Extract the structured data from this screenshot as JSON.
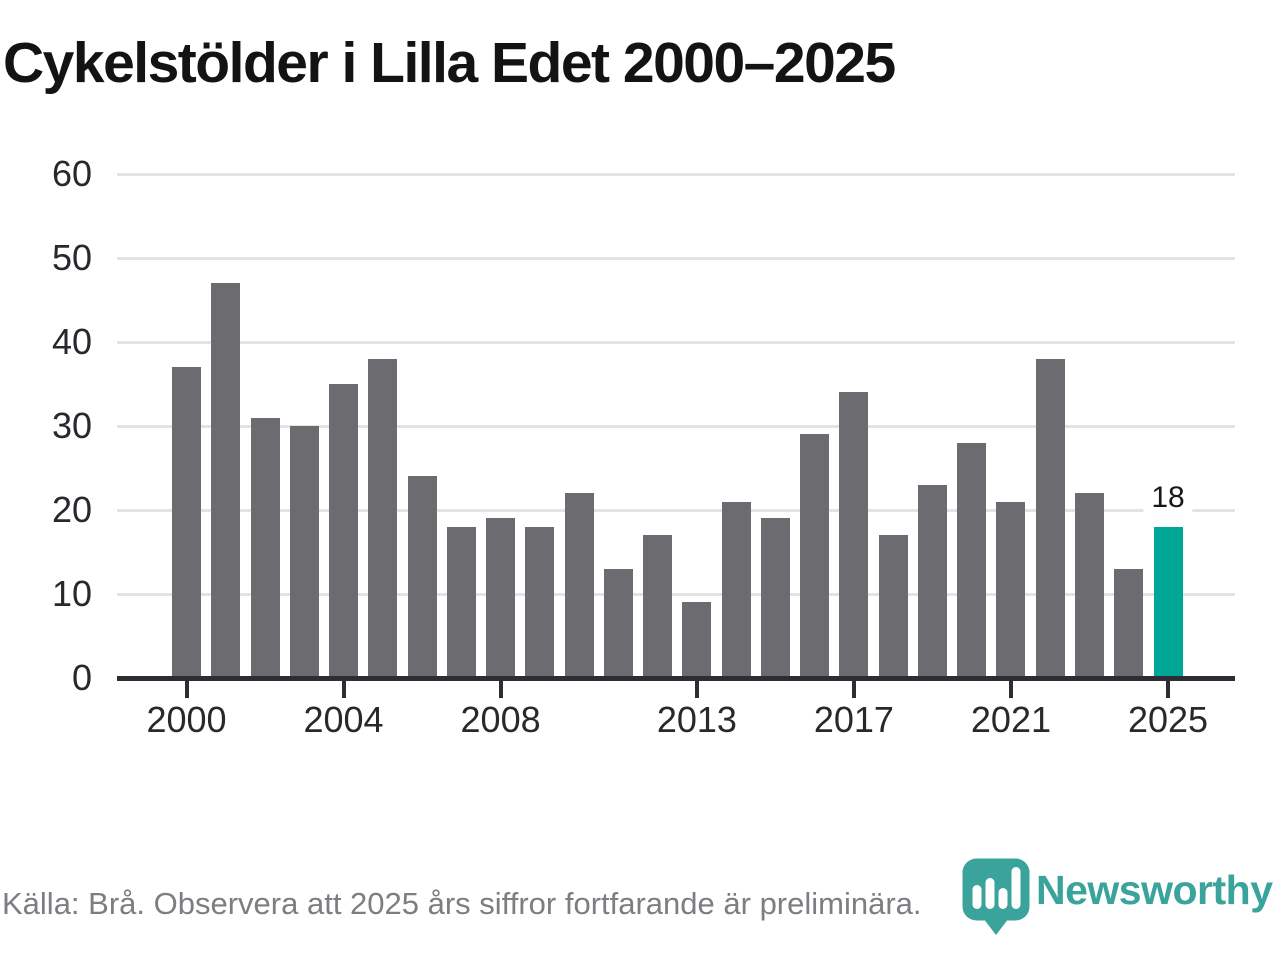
{
  "chart_data": {
    "type": "bar",
    "title": "Cykelstölder i Lilla Edet 2000–2025",
    "categories": [
      "2000",
      "2001",
      "2002",
      "2003",
      "2004",
      "2005",
      "2006",
      "2007",
      "2008",
      "2009",
      "2010",
      "2011",
      "2012",
      "2013",
      "2014",
      "2015",
      "2016",
      "2017",
      "2018",
      "2019",
      "2020",
      "2021",
      "2022",
      "2023",
      "2024",
      "2025"
    ],
    "values": [
      37,
      47,
      31,
      30,
      35,
      38,
      24,
      18,
      19,
      18,
      22,
      13,
      17,
      9,
      21,
      19,
      29,
      34,
      17,
      23,
      28,
      21,
      38,
      22,
      13,
      18
    ],
    "xlabel": "",
    "ylabel": "",
    "ylim": [
      0,
      60
    ],
    "yticks": [
      0,
      10,
      20,
      30,
      40,
      50,
      60
    ],
    "xtick_labels": [
      "2000",
      "2004",
      "2008",
      "2013",
      "2017",
      "2021",
      "2025"
    ],
    "xtick_indices": [
      0,
      4,
      8,
      13,
      17,
      21,
      25
    ],
    "grid": true,
    "legend": false,
    "bar_color": "#6c6b70",
    "highlight_index": 25,
    "highlight_color": "#00a796",
    "highlight_label": "18"
  },
  "footer": {
    "source": "Källa: Brå. Observera att 2025 års siffror fortfarande är preliminära."
  },
  "logo": {
    "text": "Newsworthy",
    "icon": "newsworthy-pin-bar-chart-icon",
    "color": "#3aa39c"
  }
}
